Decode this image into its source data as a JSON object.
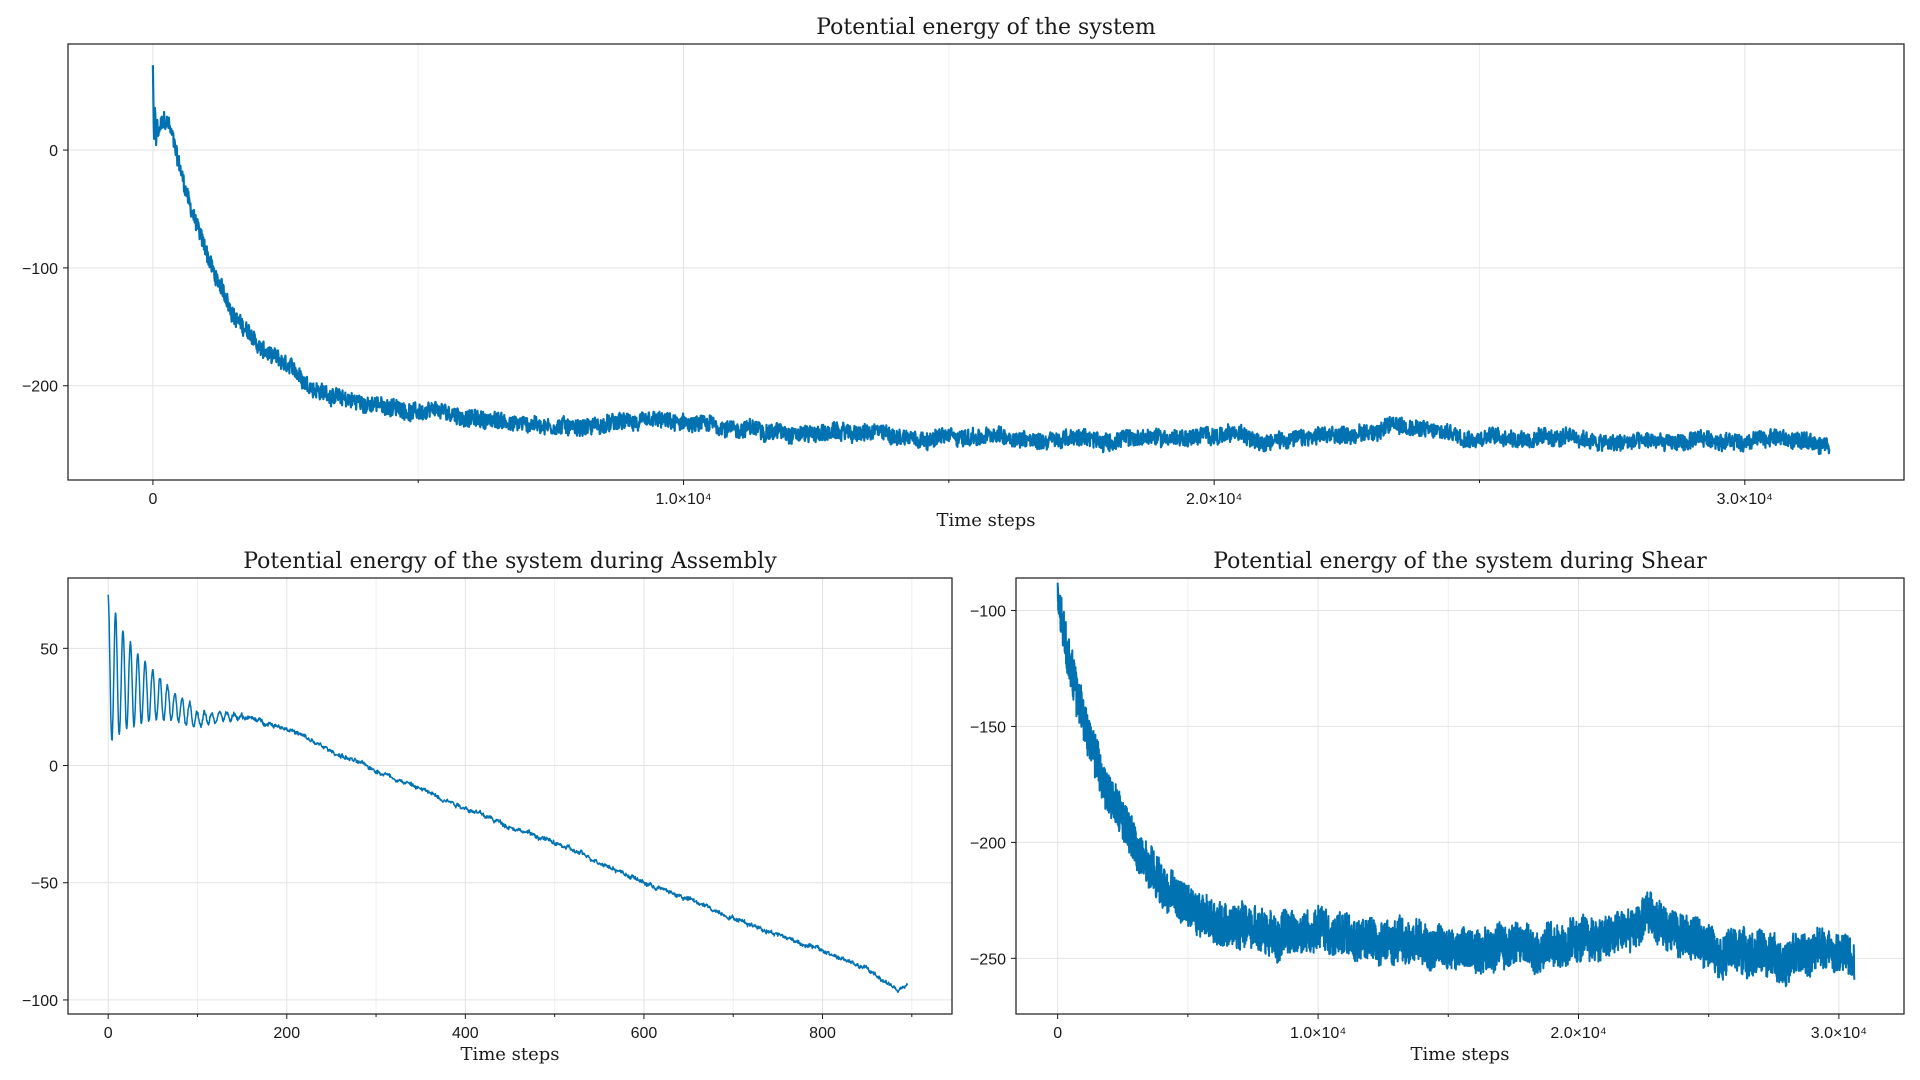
{
  "chart_data": [
    {
      "id": "full",
      "type": "line",
      "title": "Potential energy of the system",
      "xlabel": "Time steps",
      "ylabel": "",
      "xlim": [
        -1600,
        33000
      ],
      "ylim": [
        -280,
        90
      ],
      "xticks": [
        0,
        10000,
        20000,
        30000
      ],
      "xtick_labels": [
        "0",
        "1.0×10⁴",
        "2.0×10⁴",
        "3.0×10⁴"
      ],
      "yticks": [
        0,
        -100,
        -200
      ],
      "ytick_labels": [
        "0",
        "−100",
        "−200"
      ],
      "grid": true,
      "legend": "none",
      "color": "#0072b2",
      "series": [
        {
          "x": [
            0,
            50,
            100,
            150,
            200,
            300,
            400,
            600,
            800,
            1000,
            1200,
            1500,
            1800,
            2000,
            2500,
            3000,
            3500,
            4000,
            5000,
            6000,
            7000,
            8000,
            9000,
            10000,
            11000,
            12000,
            13000,
            14000,
            15000,
            16000,
            17000,
            18000,
            19000,
            20000,
            21000,
            22000,
            23000,
            23500,
            24000,
            25000,
            26000,
            27000,
            27500,
            28000,
            29000,
            30000,
            30500,
            31000,
            31600
          ],
          "y": [
            72,
            10,
            15,
            20,
            24,
            20,
            5,
            -30,
            -60,
            -85,
            -110,
            -138,
            -155,
            -168,
            -185,
            -200,
            -210,
            -215,
            -222,
            -228,
            -232,
            -234,
            -232,
            -234,
            -236,
            -238,
            -240,
            -242,
            -243,
            -244,
            -245,
            -246,
            -244,
            -242,
            -244,
            -245,
            -238,
            -232,
            -238,
            -242,
            -244,
            -246,
            -250,
            -248,
            -248,
            -246,
            -243,
            -247,
            -250
          ]
        }
      ]
    },
    {
      "id": "assembly",
      "type": "line",
      "title": "Potential energy of the system during Assembly",
      "xlabel": "Time steps",
      "ylabel": "",
      "xlim": [
        -45,
        945
      ],
      "ylim": [
        -106,
        80
      ],
      "xticks": [
        0,
        200,
        400,
        600,
        800
      ],
      "xtick_labels": [
        "0",
        "200",
        "400",
        "600",
        "800"
      ],
      "yticks": [
        50,
        0,
        -50,
        -100
      ],
      "ytick_labels": [
        "50",
        "0",
        "−50",
        "−100"
      ],
      "grid": true,
      "legend": "none",
      "color": "#0072b2",
      "series": [
        {
          "x": [
            0,
            100,
            150,
            200,
            250,
            300,
            350,
            400,
            450,
            500,
            550,
            600,
            650,
            700,
            750,
            800,
            850,
            870,
            885,
            895
          ],
          "y": [
            40,
            20,
            21,
            16,
            6,
            -2,
            -10,
            -18,
            -26,
            -33,
            -41,
            -50,
            -57,
            -65,
            -72,
            -79,
            -87,
            -92,
            -96,
            -94
          ]
        }
      ]
    },
    {
      "id": "shear",
      "type": "line",
      "title": "Potential energy of the system during Shear",
      "xlabel": "Time steps",
      "ylabel": "",
      "xlim": [
        -1600,
        32500
      ],
      "ylim": [
        -274,
        -86
      ],
      "xticks": [
        0,
        10000,
        20000,
        30000
      ],
      "xtick_labels": [
        "0",
        "1.0×10⁴",
        "2.0×10⁴",
        "3.0×10⁴"
      ],
      "yticks": [
        -100,
        -150,
        -200,
        -250
      ],
      "ytick_labels": [
        "−100",
        "−150",
        "−200",
        "−250"
      ],
      "grid": true,
      "legend": "none",
      "color": "#0072b2",
      "series": [
        {
          "x": [
            0,
            300,
            600,
            900,
            1200,
            1600,
            2000,
            2500,
            3000,
            3500,
            4000,
            5000,
            6000,
            7000,
            8000,
            9000,
            10000,
            11000,
            12000,
            13000,
            14000,
            15000,
            16000,
            17000,
            18000,
            19000,
            20000,
            21000,
            22000,
            22800,
            23500,
            24000,
            25000,
            26000,
            27000,
            28000,
            29000,
            29500,
            30000,
            30600
          ],
          "y": [
            -96,
            -115,
            -128,
            -142,
            -155,
            -168,
            -180,
            -192,
            -203,
            -212,
            -220,
            -228,
            -233,
            -236,
            -237,
            -238,
            -238,
            -240,
            -242,
            -243,
            -244,
            -245,
            -246,
            -244,
            -244,
            -243,
            -243,
            -242,
            -238,
            -232,
            -236,
            -240,
            -244,
            -246,
            -248,
            -250,
            -248,
            -245,
            -247,
            -250
          ]
        }
      ]
    }
  ]
}
